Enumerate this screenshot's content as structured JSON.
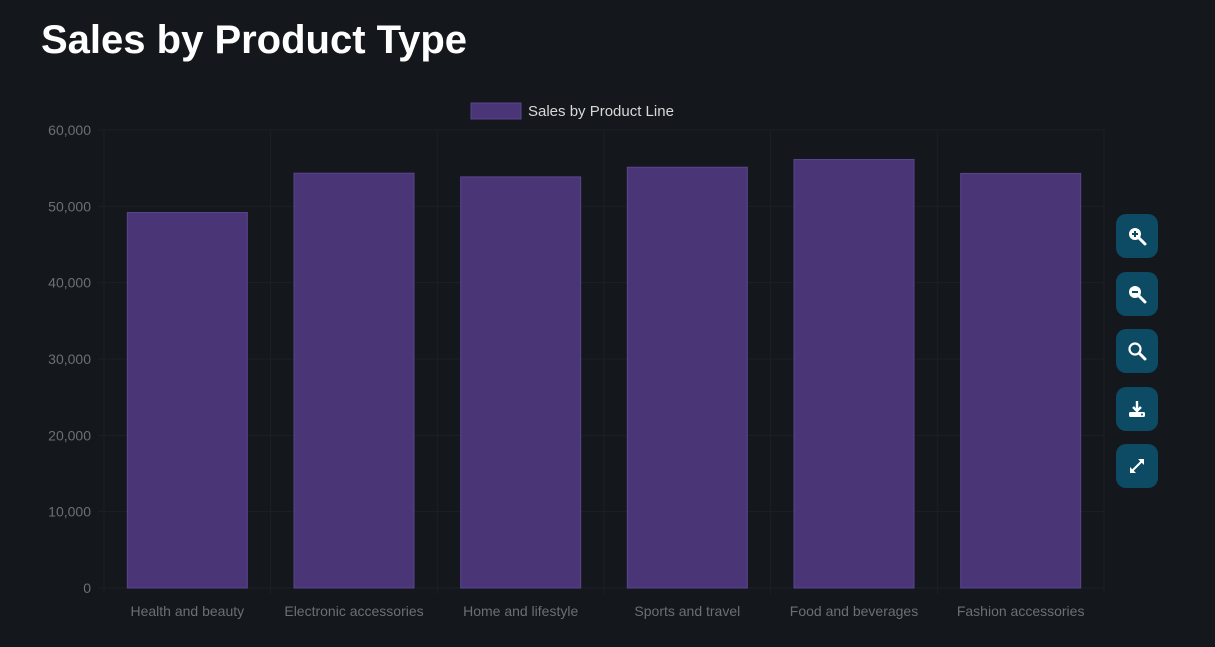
{
  "page": {
    "title": "Sales by Product Type"
  },
  "chart_data": {
    "type": "bar",
    "categories": [
      "Health and beauty",
      "Electronic accessories",
      "Home and lifestyle",
      "Sports and travel",
      "Food and beverages",
      "Fashion accessories"
    ],
    "series": [
      {
        "name": "Sales by Product Line",
        "values": [
          49190,
          54340,
          53860,
          55120,
          56140,
          54310
        ],
        "color": "#4a3577"
      }
    ],
    "yticks": [
      0,
      10000,
      20000,
      30000,
      40000,
      50000,
      60000
    ],
    "ytick_labels": [
      "0",
      "10,000",
      "20,000",
      "30,000",
      "40,000",
      "50,000",
      "60,000"
    ],
    "ylim": [
      0,
      60000
    ],
    "grid": true,
    "legend": "top-center"
  },
  "toolbar": {
    "buttons": [
      {
        "name": "zoom-in-button",
        "icon": "zoom-in-icon"
      },
      {
        "name": "zoom-out-button",
        "icon": "zoom-out-icon"
      },
      {
        "name": "reset-zoom-button",
        "icon": "search-icon"
      },
      {
        "name": "download-button",
        "icon": "download-icon"
      },
      {
        "name": "fullscreen-button",
        "icon": "expand-icon"
      }
    ],
    "button_color": "#0d4a63"
  }
}
